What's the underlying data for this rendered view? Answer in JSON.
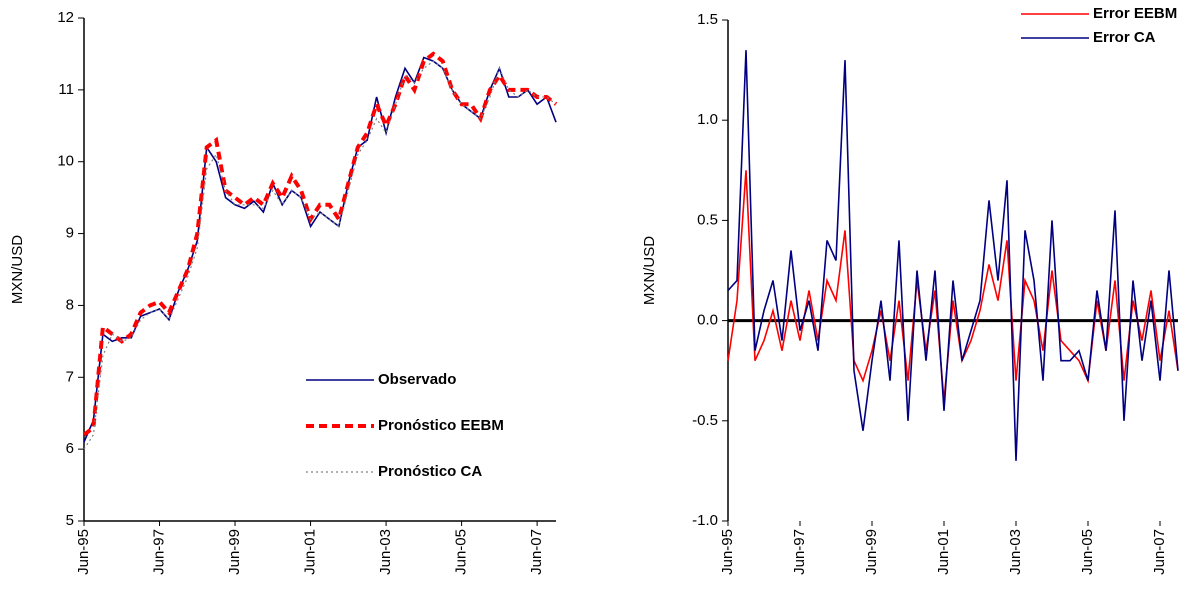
{
  "chart_data": [
    {
      "type": "line",
      "y_label": "MXN/USD",
      "categories": [
        "Jun-95",
        null,
        null,
        null,
        null,
        null,
        null,
        null,
        "Jun-97",
        null,
        null,
        null,
        null,
        null,
        null,
        null,
        "Jun-99",
        null,
        null,
        null,
        null,
        null,
        null,
        null,
        "Jun-01",
        null,
        null,
        null,
        null,
        null,
        null,
        null,
        "Jun-03",
        null,
        null,
        null,
        null,
        null,
        null,
        null,
        "Jun-05",
        null,
        null,
        null,
        null,
        null,
        null,
        null,
        "Jun-07",
        null,
        null
      ],
      "ylim": [
        5,
        12
      ],
      "yticks": [
        5,
        6,
        7,
        8,
        9,
        10,
        11,
        12
      ],
      "legend": "lower-right",
      "series": [
        {
          "name": "Observado",
          "color": "#000080",
          "style": "solid",
          "values": [
            6.1,
            6.4,
            7.6,
            7.5,
            7.55,
            7.55,
            7.85,
            7.9,
            7.95,
            7.8,
            8.2,
            8.5,
            8.9,
            10.2,
            10.0,
            9.5,
            9.4,
            9.35,
            9.45,
            9.3,
            9.7,
            9.4,
            9.6,
            9.5,
            9.1,
            9.3,
            9.2,
            9.1,
            9.7,
            10.2,
            10.3,
            10.9,
            10.4,
            10.9,
            11.3,
            11.1,
            11.45,
            11.4,
            11.3,
            11.0,
            10.8,
            10.7,
            10.6,
            11.0,
            11.3,
            10.9,
            10.9,
            11.0,
            10.8,
            10.9,
            10.55
          ]
        },
        {
          "name": "Pronóstico EEBM",
          "color": "#ff0000",
          "style": "dashed",
          "values": [
            6.2,
            6.3,
            7.7,
            7.6,
            7.5,
            7.6,
            7.9,
            8.0,
            8.05,
            7.9,
            8.2,
            8.5,
            9.0,
            10.2,
            10.3,
            9.6,
            9.5,
            9.4,
            9.5,
            9.4,
            9.7,
            9.5,
            9.8,
            9.6,
            9.2,
            9.4,
            9.4,
            9.2,
            9.7,
            10.2,
            10.4,
            10.8,
            10.5,
            10.8,
            11.2,
            11.0,
            11.4,
            11.5,
            11.4,
            11.0,
            10.8,
            10.8,
            10.6,
            11.0,
            11.2,
            11.0,
            11.0,
            11.0,
            10.9,
            10.9,
            10.8
          ]
        },
        {
          "name": "Pronóstico CA",
          "color": "#808080",
          "style": "dotted",
          "values": [
            6.0,
            6.2,
            7.3,
            7.6,
            7.5,
            7.55,
            7.8,
            7.9,
            7.95,
            7.8,
            8.1,
            8.4,
            8.8,
            9.9,
            10.1,
            9.6,
            9.4,
            9.4,
            9.4,
            9.35,
            9.6,
            9.4,
            9.6,
            9.5,
            9.2,
            9.3,
            9.2,
            9.1,
            9.6,
            10.1,
            10.3,
            10.6,
            10.4,
            10.8,
            11.2,
            11.1,
            11.3,
            11.4,
            11.3,
            11.0,
            10.8,
            10.7,
            10.6,
            10.9,
            11.3,
            11.0,
            10.9,
            11.0,
            10.9,
            10.9,
            10.8
          ]
        }
      ]
    },
    {
      "type": "line",
      "y_label": "MXN/USD",
      "categories": [
        "Jun-95",
        null,
        null,
        null,
        null,
        null,
        null,
        null,
        "Jun-97",
        null,
        null,
        null,
        null,
        null,
        null,
        null,
        "Jun-99",
        null,
        null,
        null,
        null,
        null,
        null,
        null,
        "Jun-01",
        null,
        null,
        null,
        null,
        null,
        null,
        null,
        "Jun-03",
        null,
        null,
        null,
        null,
        null,
        null,
        null,
        "Jun-05",
        null,
        null,
        null,
        null,
        null,
        null,
        null,
        "Jun-07",
        null,
        null
      ],
      "ylim": [
        -1,
        1.5
      ],
      "yticks": [
        {
          "value": -1,
          "label": "-1.0"
        },
        -0.5,
        {
          "value": 0,
          "label": "0.0"
        },
        0.5,
        {
          "value": 1,
          "label": "1.0"
        },
        1.5
      ],
      "legend": "upper-right-outside",
      "zero_line": true,
      "series": [
        {
          "name": "Error EEBM",
          "color": "#ff0000",
          "style": "solid",
          "values": [
            -0.2,
            0.1,
            0.75,
            -0.2,
            -0.1,
            0.05,
            -0.15,
            0.1,
            -0.1,
            0.15,
            -0.1,
            0.2,
            0.1,
            0.45,
            -0.2,
            -0.3,
            -0.15,
            0.05,
            -0.2,
            0.1,
            -0.3,
            0.2,
            -0.15,
            0.15,
            -0.4,
            0.1,
            -0.2,
            -0.1,
            0.05,
            0.28,
            0.1,
            0.4,
            -0.3,
            0.2,
            0.1,
            -0.15,
            0.25,
            -0.1,
            -0.15,
            -0.2,
            -0.3,
            0.1,
            -0.15,
            0.2,
            -0.3,
            0.1,
            -0.1,
            0.15,
            -0.2,
            0.05,
            -0.25
          ]
        },
        {
          "name": "Error CA",
          "color": "#000080",
          "style": "solid",
          "values": [
            0.15,
            0.2,
            1.35,
            -0.15,
            0.05,
            0.2,
            -0.1,
            0.35,
            -0.05,
            0.1,
            -0.15,
            0.4,
            0.3,
            1.3,
            -0.25,
            -0.55,
            -0.2,
            0.1,
            -0.3,
            0.4,
            -0.5,
            0.25,
            -0.2,
            0.25,
            -0.45,
            0.2,
            -0.2,
            -0.05,
            0.1,
            0.6,
            0.2,
            0.7,
            -0.7,
            0.45,
            0.2,
            -0.3,
            0.5,
            -0.2,
            -0.2,
            -0.15,
            -0.3,
            0.15,
            -0.15,
            0.55,
            -0.5,
            0.2,
            -0.2,
            0.1,
            -0.3,
            0.25,
            -0.25
          ]
        }
      ]
    }
  ]
}
